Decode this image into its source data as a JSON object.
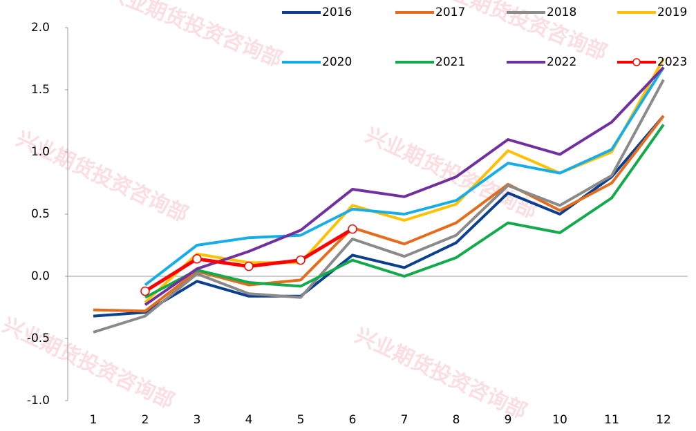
{
  "chart_data": {
    "type": "line",
    "watermark": "兴业期货投资咨询部",
    "categories": [
      "1",
      "2",
      "3",
      "4",
      "5",
      "6",
      "7",
      "8",
      "9",
      "10",
      "11",
      "12"
    ],
    "series": [
      {
        "name": "2016",
        "color": "#0b3f8f",
        "values": [
          -0.32,
          -0.29,
          -0.04,
          -0.16,
          -0.16,
          0.17,
          0.07,
          0.27,
          0.67,
          0.5,
          0.8,
          1.29
        ]
      },
      {
        "name": "2017",
        "color": "#e46c1a",
        "values": [
          -0.27,
          -0.28,
          0.04,
          -0.07,
          -0.03,
          0.39,
          0.26,
          0.43,
          0.74,
          0.53,
          0.75,
          1.29
        ]
      },
      {
        "name": "2018",
        "color": "#8a8a8a",
        "values": [
          -0.45,
          -0.32,
          0.02,
          -0.14,
          -0.17,
          0.3,
          0.16,
          0.33,
          0.73,
          0.57,
          0.81,
          1.58
        ]
      },
      {
        "name": "2019",
        "color": "#ffc000",
        "values": [
          null,
          -0.21,
          0.18,
          0.11,
          0.11,
          0.57,
          0.45,
          0.58,
          1.01,
          0.83,
          1.0,
          1.75
        ]
      },
      {
        "name": "2020",
        "color": "#16aee8",
        "values": [
          null,
          -0.07,
          0.25,
          0.31,
          0.33,
          0.54,
          0.5,
          0.61,
          0.91,
          0.83,
          1.02,
          1.68
        ]
      },
      {
        "name": "2021",
        "color": "#12aa4a",
        "values": [
          null,
          -0.17,
          0.05,
          -0.05,
          -0.08,
          0.13,
          0.0,
          0.15,
          0.43,
          0.35,
          0.63,
          1.22
        ]
      },
      {
        "name": "2022",
        "color": "#7030a0",
        "values": [
          null,
          -0.23,
          0.06,
          0.2,
          0.37,
          0.7,
          0.64,
          0.8,
          1.1,
          0.98,
          1.24,
          1.68
        ]
      },
      {
        "name": "2023",
        "color": "#ff0000",
        "markers": true,
        "values": [
          null,
          -0.12,
          0.14,
          0.08,
          0.13,
          0.38,
          null,
          null,
          null,
          null,
          null,
          null
        ]
      }
    ],
    "ylim": [
      -1,
      2
    ],
    "yticks": [
      {
        "value": -1,
        "label": "-1.0"
      },
      -0.5,
      {
        "value": 0,
        "label": "0.0"
      },
      0.5,
      {
        "value": 1,
        "label": "1.0"
      },
      1.5,
      {
        "value": 2,
        "label": "2.0"
      }
    ]
  }
}
